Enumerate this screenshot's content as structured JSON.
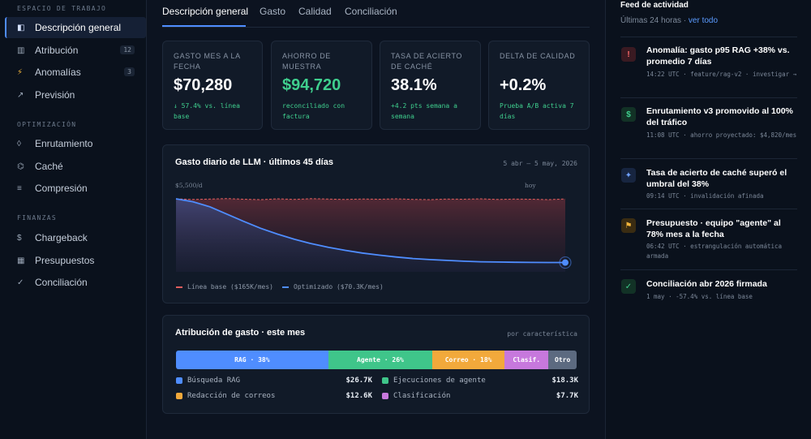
{
  "sidebar": {
    "sections": [
      {
        "title": "ESPACIO DE TRABAJO",
        "items": [
          {
            "label": "Descripción general",
            "icon": "layout-icon",
            "glyph": "◧",
            "active": true
          },
          {
            "label": "Atribución",
            "icon": "table-icon",
            "glyph": "▥",
            "badge": "12"
          },
          {
            "label": "Anomalías",
            "icon": "bolt-icon",
            "glyph": "⚡",
            "badge": "3"
          },
          {
            "label": "Previsión",
            "icon": "trend-arrow-icon",
            "glyph": "↗"
          }
        ]
      },
      {
        "title": "OPTIMIZACIÓN",
        "items": [
          {
            "label": "Enrutamiento",
            "icon": "route-icon",
            "glyph": "◊"
          },
          {
            "label": "Caché",
            "icon": "cache-icon",
            "glyph": "⌬"
          },
          {
            "label": "Compresión",
            "icon": "compress-icon",
            "glyph": "≡"
          }
        ]
      },
      {
        "title": "FINANZAS",
        "items": [
          {
            "label": "Chargeback",
            "icon": "dollar-icon",
            "glyph": "$"
          },
          {
            "label": "Presupuestos",
            "icon": "budget-icon",
            "glyph": "▦"
          },
          {
            "label": "Conciliación",
            "icon": "check-icon",
            "glyph": "✓"
          }
        ]
      }
    ]
  },
  "tabs": [
    {
      "label": "Descripción general",
      "active": true
    },
    {
      "label": "Gasto"
    },
    {
      "label": "Calidad"
    },
    {
      "label": "Conciliación"
    }
  ],
  "kpis": [
    {
      "label": "GASTO MES A LA FECHA",
      "value": "$70,280",
      "sub": "↓ 57.4% vs. línea base"
    },
    {
      "label": "AHORRO DE MUESTRA",
      "value": "$94,720",
      "sub": "reconciliado con factura",
      "green": true
    },
    {
      "label": "TASA DE ACIERTO DE CACHÉ",
      "value": "38.1%",
      "sub": "+4.2 pts semana a semana"
    },
    {
      "label": "DELTA DE CALIDAD",
      "value": "+0.2%",
      "sub": "Prueba A/B activa 7 días"
    }
  ],
  "spend_chart": {
    "title": "Gasto diario de LLM · últimos 45 días",
    "range": "5 abr – 5 may, 2026",
    "max_label": "$5,500/d",
    "today_label": "hoy",
    "legend": [
      {
        "label": "Línea base ($165K/mes)",
        "color": "#e05d5d"
      },
      {
        "label": "Optimizado ($70.3K/mes)",
        "color": "#4f8dff"
      }
    ]
  },
  "chart_data": {
    "type": "area",
    "title": "Gasto diario de LLM · últimos 45 días",
    "x_labels": [
      "5 abr – 5 may, 2026",
      "hoy"
    ],
    "ymax_label": "$5,500/d",
    "ylim": [
      0,
      5500
    ],
    "series": [
      {
        "name": "Línea base ($165K/mes)",
        "color": "#e05d5d",
        "values": [
          5500,
          5450,
          5480,
          5520,
          5470,
          5440,
          5500,
          5460,
          5510,
          5480,
          5450,
          5490,
          5470,
          5500,
          5460,
          5440,
          5480,
          5470,
          5500,
          5450,
          5480,
          5470,
          5440,
          5490
        ]
      },
      {
        "name": "Optimizado ($70.3K/mes)",
        "color": "#4f8dff",
        "values": [
          5500,
          5280,
          4900,
          4350,
          3800,
          3280,
          2840,
          2450,
          2120,
          1850,
          1620,
          1420,
          1260,
          1120,
          1000,
          920,
          860,
          800,
          760,
          740,
          720,
          710,
          700,
          700
        ]
      }
    ]
  },
  "attribution": {
    "title": "Atribución de gasto · este mes",
    "meta": "por característica",
    "segments": [
      {
        "label": "RAG · 38%",
        "pct": 38,
        "color": "#4f8dff"
      },
      {
        "label": "Agente · 26%",
        "pct": 26,
        "color": "#3fc58a"
      },
      {
        "label": "Correo · 18%",
        "pct": 18,
        "color": "#f2a93b"
      },
      {
        "label": "Clasif.",
        "pct": 11,
        "color": "#c778dd"
      },
      {
        "label": "Otro",
        "pct": 7,
        "color": "#5c6a80"
      }
    ],
    "rows": [
      {
        "label": "Búsqueda RAG",
        "value": "$26.7K",
        "color": "#4f8dff"
      },
      {
        "label": "Ejecuciones de agente",
        "value": "$18.3K",
        "color": "#3fc58a"
      },
      {
        "label": "Redacción de correos",
        "value": "$12.6K",
        "color": "#f2a93b"
      },
      {
        "label": "Clasificación",
        "value": "$7.7K",
        "color": "#c778dd"
      }
    ]
  },
  "feed": {
    "title": "Feed de actividad",
    "sub": "Últimas 24 horas · ",
    "link": "ver todo",
    "items": [
      {
        "icon": "alert-icon",
        "glyph": "!",
        "fg": "#ff6b6b",
        "bg": "#3a1a22",
        "head": "Anomalía: gasto p95 RAG +38% vs. promedio 7 días",
        "detail": "14:22 UTC · feature/rag-v2 · investigar →"
      },
      {
        "icon": "dollar-icon",
        "glyph": "$",
        "fg": "#3fcf8e",
        "bg": "#123226",
        "head": "Enrutamiento v3 promovido al 100% del tráfico",
        "detail": "11:08 UTC · ahorro proyectado: $4,820/mes"
      },
      {
        "icon": "sparkle-icon",
        "glyph": "✦",
        "fg": "#6ea0ff",
        "bg": "#172540",
        "head": "Tasa de acierto de caché superó el umbral del 38%",
        "detail": "09:14 UTC · invalidación afinada"
      },
      {
        "icon": "flag-icon",
        "glyph": "⚑",
        "fg": "#f2b43b",
        "bg": "#3a2c12",
        "head": "Presupuesto · equipo \"agente\" al 78% mes a la fecha",
        "detail": "06:42 UTC · estrangulación automática armada"
      },
      {
        "icon": "check-icon",
        "glyph": "✓",
        "fg": "#3fcf8e",
        "bg": "#123226",
        "head": "Conciliación abr 2026 firmada",
        "detail": "1 may · -57.4% vs. línea base"
      }
    ]
  }
}
